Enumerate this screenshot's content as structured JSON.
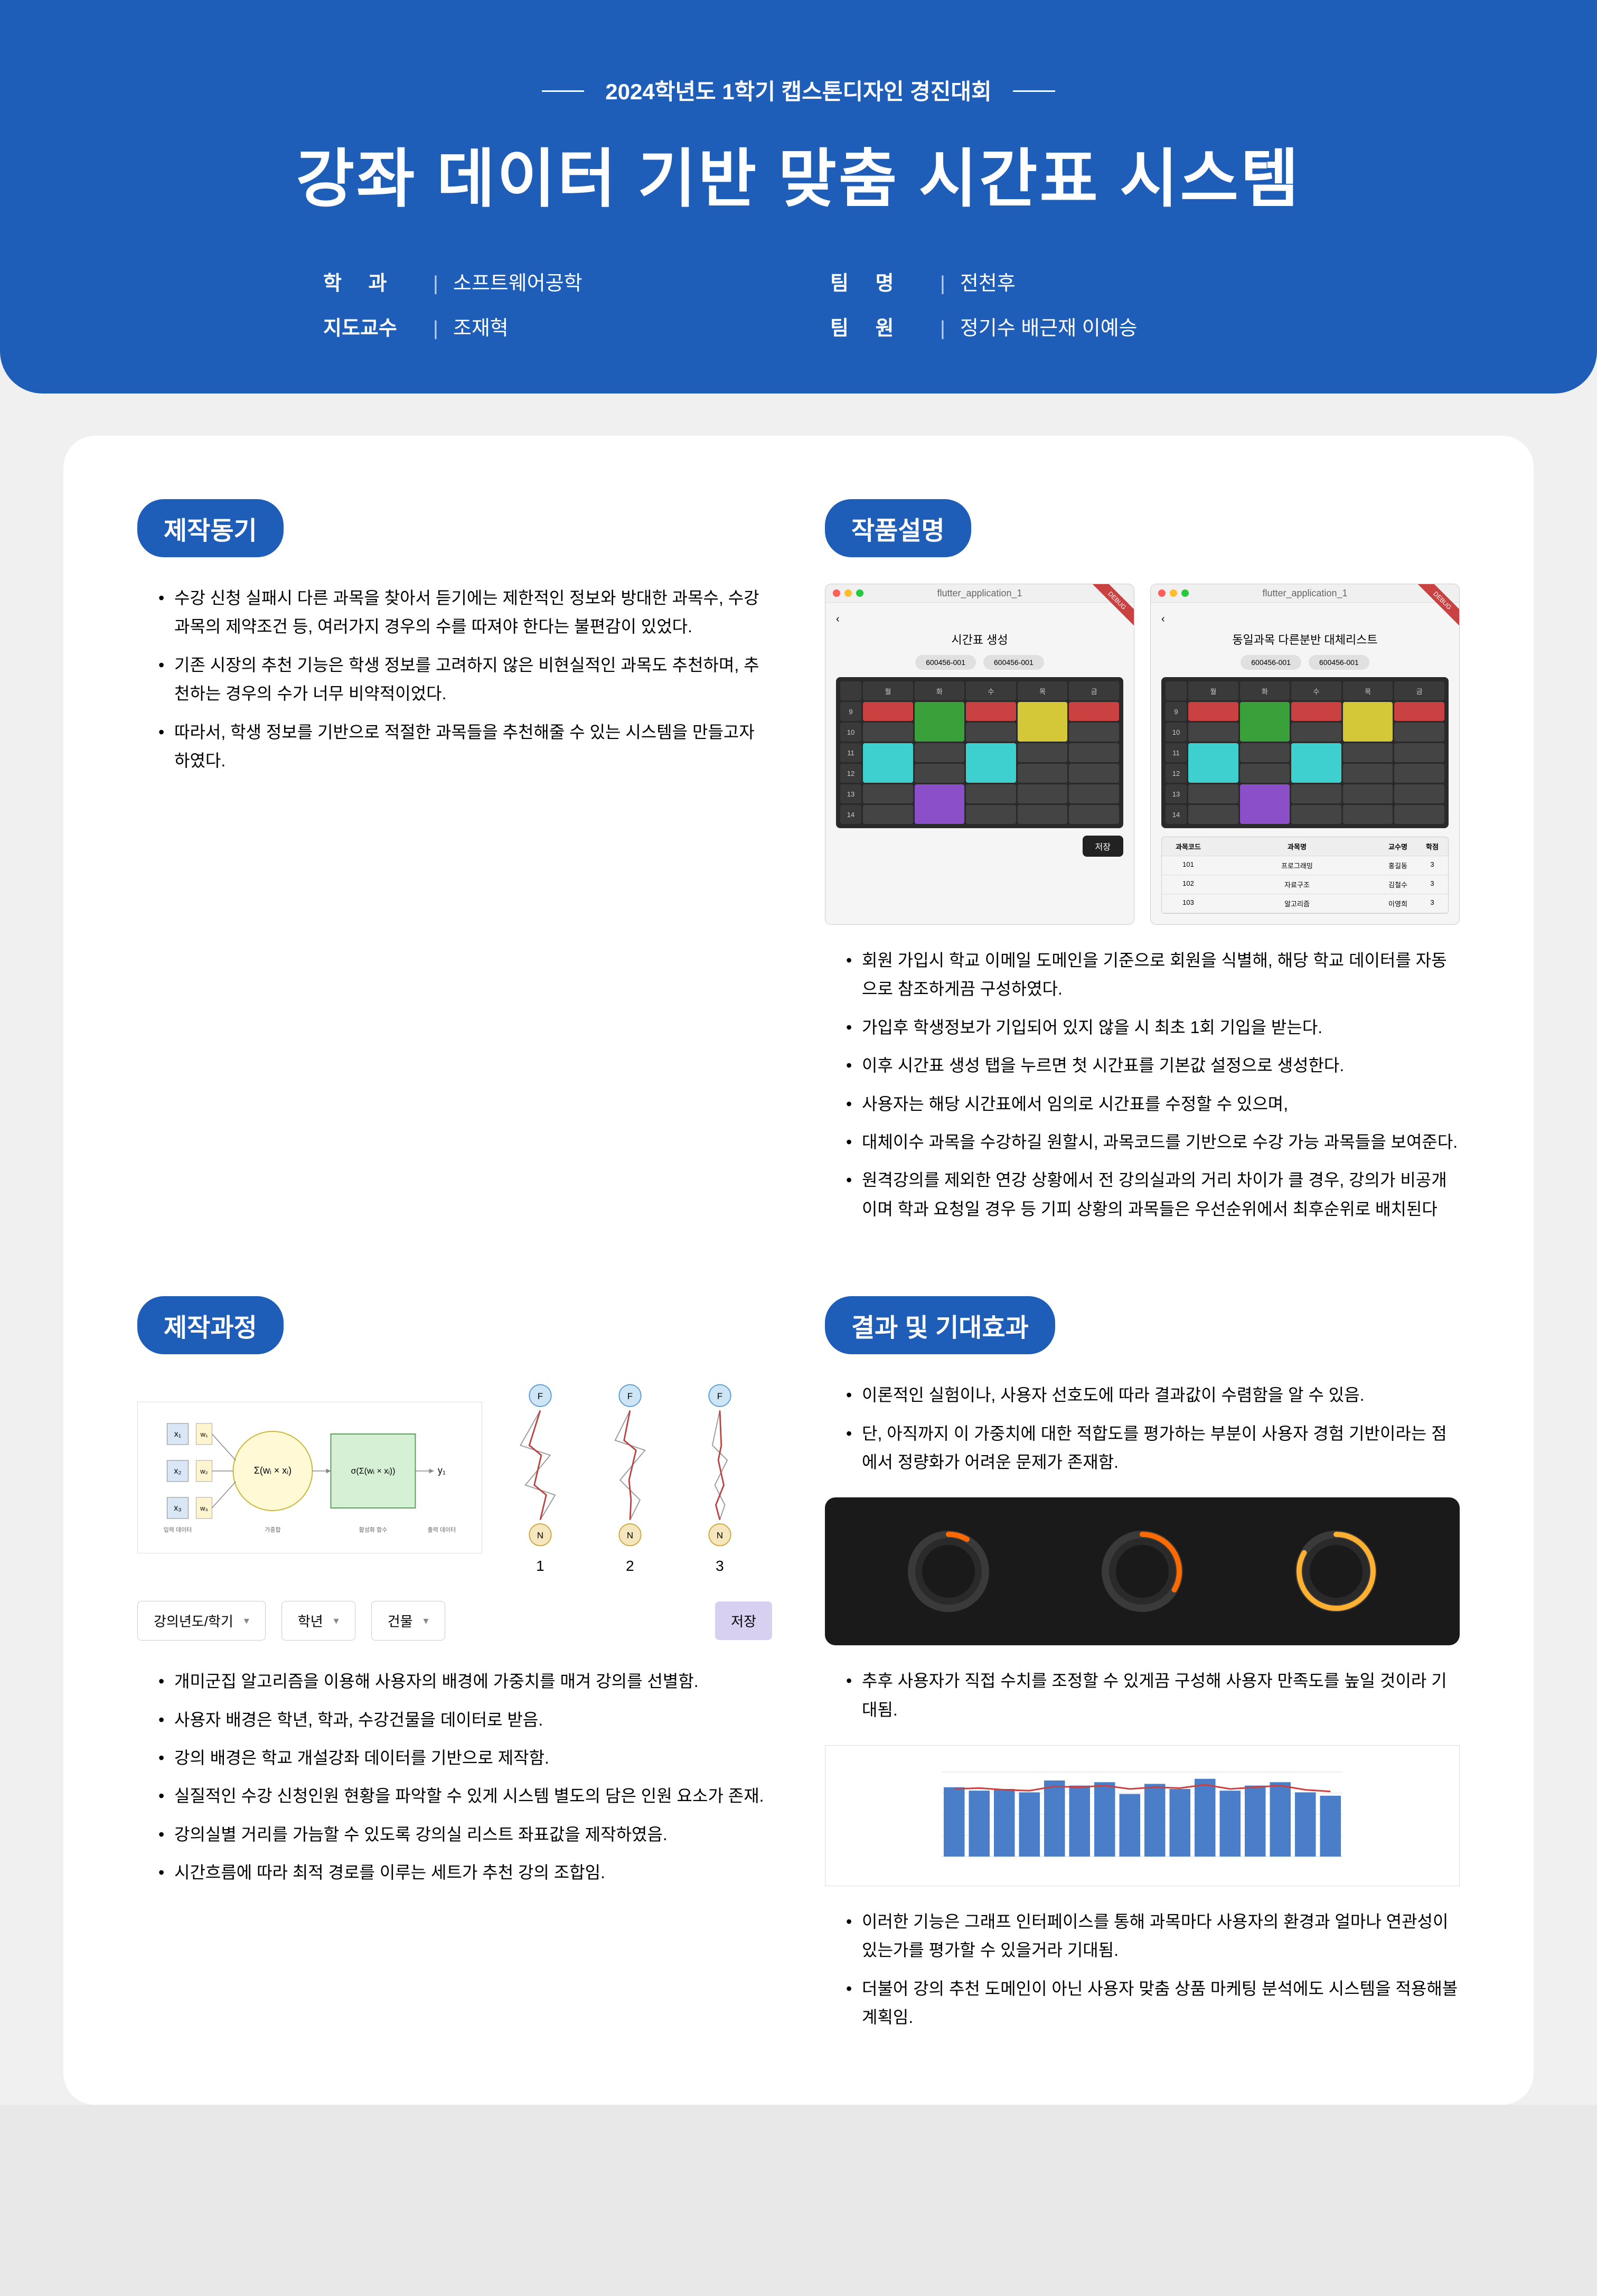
{
  "header": {
    "subtitle": "2024학년도 1학기 캡스톤디자인 경진대회",
    "title": "강좌 데이터 기반 맞춤 시간표  시스템",
    "dept_label": "학        과",
    "dept": "소프트웨어공학",
    "team_label": "팀        명",
    "team": "전천후",
    "advisor_label": "지도교수",
    "advisor": "조재혁",
    "members_label": "팀        원",
    "members": "정기수 배근재 이예승"
  },
  "sections": {
    "motivation_title": "제작동기",
    "motivation": [
      "수강 신청 실패시 다른 과목을 찾아서 듣기에는 제한적인 정보와 방대한 과목수, 수강 과목의 제약조건 등, 여러가지 경우의 수를 따져야 한다는 불편감이 있었다.",
      "기존 시장의 추천 기능은 학생 정보를 고려하지 않은 비현실적인 과목도 추천하며, 추천하는 경우의 수가 너무 비약적이었다.",
      "따라서, 학생 정보를 기반으로 적절한 과목들을 추천해줄 수 있는 시스템을 만들고자 하였다."
    ],
    "description_title": "작품설명",
    "description": [
      "회원 가입시 학교 이메일 도메인을 기준으로 회원을 식별해, 해당 학교 데이터를 자동으로 참조하게끔 구성하였다.",
      "가입후 학생정보가 기입되어 있지 않을 시 최초 1회 기입을 받는다.",
      "이후 시간표 생성 탭을 누르면 첫 시간표를 기본값 설정으로 생성한다.",
      "사용자는 해당 시간표에서 임의로 시간표를 수정할 수 있으며,",
      "대체이수 과목을 수강하길 원할시, 과목코드를 기반으로 수강 가능 과목들을 보여준다.",
      "원격강의를 제외한 연강 상황에서 전 강의실과의 거리 차이가 클 경우, 강의가 비공개이며 학과 요청일 경우 등 기피 상황의 과목들은 우선순위에서 최후순위로 배치된다"
    ],
    "process_title": "제작과정",
    "process": [
      "개미군집 알고리즘을 이용해 사용자의 배경에 가중치를 매겨 강의를 선별함.",
      "사용자 배경은 학년, 학과, 수강건물을 데이터로 받음.",
      "강의 배경은 학교 개설강좌 데이터를 기반으로 제작함.",
      "실질적인 수강 신청인원 현황을 파악할 수 있게 시스템 별도의 담은 인원 요소가 존재.",
      "강의실별 거리를 가늠할 수 있도록 강의실 리스트 좌표값을 제작하였음.",
      "시간흐름에 따라 최적 경로를 이루는 세트가 추천 강의 조합임."
    ],
    "result_title": "결과 및 기대효과",
    "result_top": [
      "이론적인 실험이나, 사용자 선호도에 따라 결과값이 수렴함을 알 수 있음.",
      "단, 아직까지 이 가중치에 대한 적합도를 평가하는 부분이 사용자 경험 기반이라는 점에서 정량화가 어려운 문제가 존재함."
    ],
    "result_mid": [
      "추후 사용자가 직접 수치를 조정할 수 있게끔 구성해 사용자 만족도를 높일 것이라 기대됨."
    ],
    "result_bottom": [
      "이러한 기능은 그래프 인터페이스를 통해 과목마다 사용자의 환경과 얼마나 연관성이 있는가를 평가할 수 있을거라 기대됨.",
      "더불어 강의 추천 도메인이 아닌 사용자 맞춤 상품 마케팅 분석에도 시스템을 적용해볼 계획임."
    ]
  },
  "app": {
    "window_title_1": "flutter_application_1",
    "window_title_2": "flutter_application_1",
    "page_title_1": "시간표 생성",
    "page_title_2": "동일과목 다른분반 대체리스트",
    "pill1": "600456-001",
    "pill2": "600456-001",
    "days": [
      "월",
      "화",
      "수",
      "목",
      "금"
    ],
    "hours": [
      "9",
      "10",
      "11",
      "12",
      "13",
      "14"
    ],
    "courses": [
      {
        "day": 0,
        "start": 0,
        "span": 1,
        "color": "#c94141",
        "label": ""
      },
      {
        "day": 1,
        "start": 0,
        "span": 2,
        "color": "#3aa03a",
        "label": ""
      },
      {
        "day": 2,
        "start": 0,
        "span": 1,
        "color": "#c94141",
        "label": ""
      },
      {
        "day": 3,
        "start": 0,
        "span": 2,
        "color": "#d4c838",
        "label": ""
      },
      {
        "day": 4,
        "start": 0,
        "span": 1,
        "color": "#c94141",
        "label": ""
      },
      {
        "day": 0,
        "start": 2,
        "span": 2,
        "color": "#3ecfcf",
        "label": ""
      },
      {
        "day": 2,
        "start": 2,
        "span": 2,
        "color": "#3ecfcf",
        "label": ""
      },
      {
        "day": 1,
        "start": 4,
        "span": 2,
        "color": "#8a4fc9",
        "label": ""
      }
    ],
    "list_headers": [
      "과목코드",
      "과목명",
      "교수명",
      "학점"
    ],
    "list_rows": [
      [
        "101",
        "프로그래밍",
        "홍길동",
        "3"
      ],
      [
        "102",
        "자료구조",
        "김철수",
        "3"
      ],
      [
        "103",
        "알고리즘",
        "이영희",
        "3"
      ]
    ],
    "save_btn": "저장"
  },
  "controls": {
    "year": "강의년도/학기",
    "grade": "학년",
    "building": "건물",
    "save": "저장"
  },
  "nn": {
    "x1": "x₁",
    "x2": "x₂",
    "x3": "x₃",
    "w1": "w₁",
    "w2": "w₂",
    "w3": "w₃",
    "sum_label": "Σ(wᵢ × xᵢ)",
    "sigma_label": "σ(Σ(wᵢ × xᵢ))",
    "y1": "y₁",
    "input_label": "입력 데이터",
    "weight_label": "가중합",
    "activation_label": "활성화 함수",
    "output_label": "출력 데이터",
    "ant_labels": [
      "1",
      "2",
      "3"
    ],
    "node_f": "F",
    "node_n": "N"
  },
  "knobs": {
    "bg": "#1a1a1a",
    "ring_colors": [
      "#ff6a00",
      "#ff6a00",
      "#ffb030"
    ],
    "arcs": [
      30,
      120,
      300
    ]
  },
  "bar_chart": {
    "bar_color": "#4a7ec9",
    "line_color": "#c94141",
    "values": [
      82,
      78,
      80,
      76,
      90,
      84,
      88,
      74,
      86,
      80,
      92,
      78,
      84,
      88,
      76,
      72
    ],
    "line_values": [
      80,
      81,
      79,
      78,
      83,
      82,
      84,
      80,
      82,
      81,
      85,
      80,
      82,
      84,
      79,
      77
    ],
    "ymax": 100
  },
  "colors": {
    "primary": "#1e5eb8",
    "bg": "#f0f0f0",
    "card": "#ffffff"
  }
}
